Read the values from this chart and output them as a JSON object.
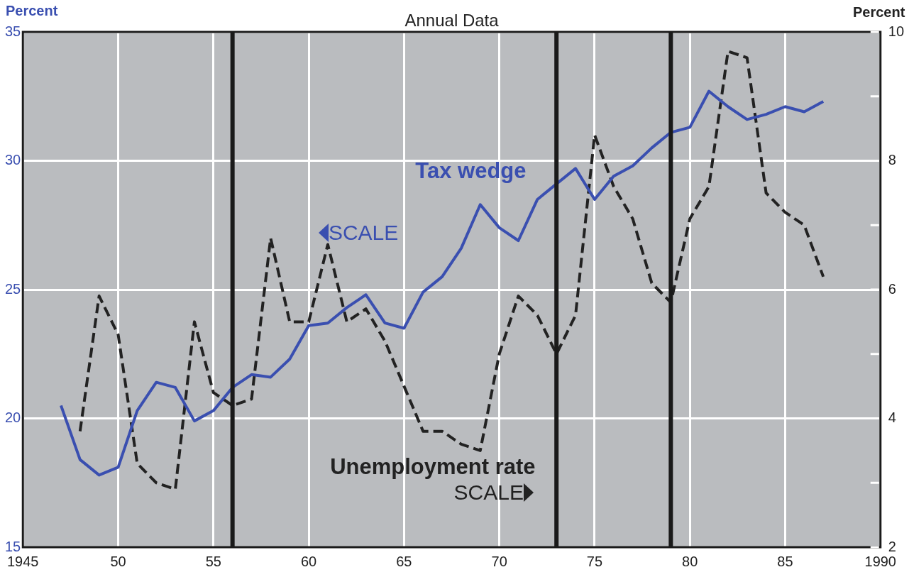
{
  "chart_data": {
    "type": "line",
    "title": "Annual Data",
    "ylabel": "Percent",
    "y2label": "Percent",
    "x": [
      1947,
      1948,
      1949,
      1950,
      1951,
      1952,
      1953,
      1954,
      1955,
      1956,
      1957,
      1958,
      1959,
      1960,
      1961,
      1962,
      1963,
      1964,
      1965,
      1966,
      1967,
      1968,
      1969,
      1970,
      1971,
      1972,
      1973,
      1974,
      1975,
      1976,
      1977,
      1978,
      1979,
      1980,
      1981,
      1982,
      1983,
      1984,
      1985,
      1986,
      1987
    ],
    "series": [
      {
        "name": "Tax wedge",
        "color": "#3a4fb0",
        "line_style": "solid",
        "values": [
          20.5,
          18.4,
          17.8,
          18.1,
          20.3,
          21.4,
          21.2,
          19.9,
          20.3,
          21.2,
          21.7,
          21.6,
          22.3,
          23.6,
          23.7,
          24.3,
          24.8,
          23.7,
          23.5,
          24.9,
          25.5,
          26.6,
          28.3,
          27.4,
          26.9,
          28.5,
          29.1,
          29.7,
          28.5,
          29.4,
          29.8,
          30.5,
          31.1,
          31.3,
          32.7,
          32.1,
          31.6,
          31.8,
          32.1,
          31.9,
          32.3
        ]
      },
      {
        "name": "Unemployment rate",
        "color": "#222222",
        "line_style": "dashed",
        "axis": "y2",
        "values": [
          null,
          3.8,
          5.9,
          5.3,
          3.3,
          3.0,
          2.9,
          5.5,
          4.4,
          4.2,
          4.3,
          6.8,
          5.5,
          5.5,
          6.7,
          5.5,
          5.7,
          5.2,
          4.5,
          3.8,
          3.8,
          3.6,
          3.5,
          5.0,
          5.9,
          5.6,
          5.0,
          5.6,
          8.4,
          7.6,
          7.1,
          6.1,
          5.8,
          7.1,
          7.6,
          9.7,
          9.6,
          7.5,
          7.2,
          7.0,
          6.2
        ]
      }
    ],
    "annotations": [
      "SCALE",
      "SCALE"
    ],
    "xlim": [
      1945,
      1990
    ],
    "xticks": [
      {
        "value": 1945,
        "label": "1945"
      },
      {
        "value": 1950,
        "label": "50"
      },
      {
        "value": 1955,
        "label": "55"
      },
      {
        "value": 1960,
        "label": "60"
      },
      {
        "value": 1965,
        "label": "65"
      },
      {
        "value": 1970,
        "label": "70"
      },
      {
        "value": 1975,
        "label": "75"
      },
      {
        "value": 1980,
        "label": "80"
      },
      {
        "value": 1985,
        "label": "85"
      },
      {
        "value": 1990,
        "label": "1990"
      }
    ],
    "ylim": [
      15,
      35
    ],
    "yticks": [
      15,
      20,
      25,
      30,
      35
    ],
    "y2lim": [
      2,
      10
    ],
    "y2ticks": [
      2,
      {
        "value": 3,
        "label": null
      },
      4,
      {
        "value": 5,
        "label": null
      },
      6,
      {
        "value": 7,
        "label": null
      },
      8,
      {
        "value": 9,
        "label": null
      },
      10
    ],
    "ref_lines": [
      {
        "axis": "x",
        "value": 1956,
        "color": "#1a1a1a"
      },
      {
        "axis": "x",
        "value": 1973,
        "color": "#1a1a1a"
      },
      {
        "axis": "x",
        "value": 1979,
        "color": "#1a1a1a"
      }
    ],
    "grid": true,
    "legend": false,
    "marker": "none"
  }
}
